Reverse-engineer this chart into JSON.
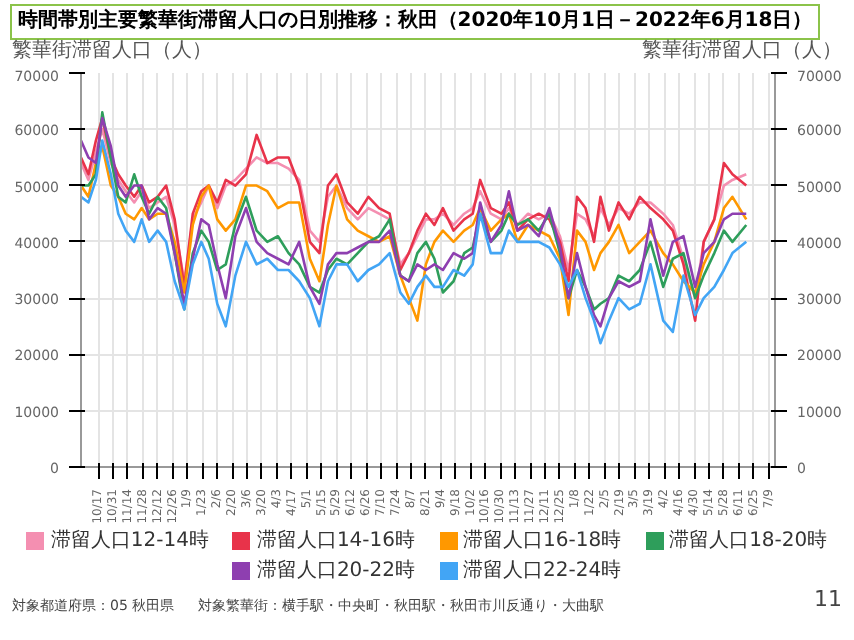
{
  "chart_data": {
    "type": "line",
    "title": "時間帯別主要繁華街滞留人口の日別推移：秋田（2020年10月1日－2022年6月18日）",
    "ylabel": "繁華街滞留人口（人）",
    "y2label": "繁華街滞留人口（人）",
    "annotations": [
      "対象都道府県：05 秋田県",
      "対象繁華街：横手駅・中央町・秋田駅・秋田市川反通り・大曲駅",
      "11"
    ],
    "x": [
      "2020-10-01",
      "2020-10-08",
      "2020-10-15",
      "2020-10-21",
      "2020-10-29",
      "2020-11-05",
      "2020-11-12",
      "2020-11-20",
      "2020-11-27",
      "2020-12-04",
      "2020-12-12",
      "2020-12-20",
      "2020-12-28",
      "2021-01-06",
      "2021-01-14",
      "2021-01-22",
      "2021-01-29",
      "2021-02-06",
      "2021-02-14",
      "2021-02-23",
      "2021-03-05",
      "2021-03-15",
      "2021-03-25",
      "2021-04-04",
      "2021-04-14",
      "2021-04-24",
      "2021-05-04",
      "2021-05-13",
      "2021-05-21",
      "2021-05-29",
      "2021-06-08",
      "2021-06-18",
      "2021-06-28",
      "2021-07-08",
      "2021-07-18",
      "2021-07-28",
      "2021-08-05",
      "2021-08-13",
      "2021-08-21",
      "2021-08-29",
      "2021-09-06",
      "2021-09-16",
      "2021-09-26",
      "2021-10-04",
      "2021-10-11",
      "2021-10-21",
      "2021-10-31",
      "2021-11-07",
      "2021-11-15",
      "2021-11-25",
      "2021-12-05",
      "2021-12-15",
      "2021-12-25",
      "2022-01-02",
      "2022-01-10",
      "2022-01-18",
      "2022-01-26",
      "2022-02-01",
      "2022-02-09",
      "2022-02-18",
      "2022-02-28",
      "2022-03-10",
      "2022-03-20",
      "2022-04-01",
      "2022-04-10",
      "2022-04-20",
      "2022-05-01",
      "2022-05-09",
      "2022-05-19",
      "2022-05-28",
      "2022-06-05",
      "2022-06-18"
    ],
    "series": [
      {
        "name": "滞留人口12-14時",
        "color": "#f48fb1",
        "values": [
          54000,
          51000,
          56000,
          60000,
          54000,
          51000,
          49000,
          47000,
          49000,
          46000,
          47000,
          48000,
          43000,
          33000,
          44000,
          47000,
          50000,
          46000,
          50000,
          51000,
          53000,
          55000,
          54000,
          54000,
          53000,
          51000,
          42000,
          40000,
          48000,
          50000,
          46000,
          44000,
          46000,
          45000,
          44000,
          36000,
          38000,
          41000,
          44000,
          44000,
          45000,
          43000,
          45000,
          46000,
          49000,
          45000,
          44000,
          46000,
          43000,
          45000,
          44000,
          45000,
          41000,
          35000,
          45000,
          44000,
          41000,
          46000,
          43000,
          46000,
          45000,
          47000,
          47000,
          45000,
          43000,
          37000,
          30000,
          40000,
          44000,
          50000,
          51000,
          52000
        ]
      },
      {
        "name": "滞留人口14-16時",
        "color": "#e8334a",
        "values": [
          55000,
          52000,
          58000,
          62000,
          55000,
          52000,
          50000,
          48000,
          50000,
          47000,
          48000,
          50000,
          44000,
          32000,
          45000,
          49000,
          50000,
          47000,
          51000,
          50000,
          52000,
          59000,
          54000,
          55000,
          55000,
          50000,
          40000,
          38000,
          50000,
          52000,
          47000,
          45000,
          48000,
          46000,
          45000,
          35000,
          38000,
          42000,
          45000,
          43000,
          46000,
          42000,
          44000,
          45000,
          51000,
          46000,
          45000,
          47000,
          42000,
          44000,
          45000,
          44000,
          40000,
          33000,
          48000,
          46000,
          40000,
          48000,
          42000,
          47000,
          44000,
          48000,
          46000,
          44000,
          42000,
          36000,
          26000,
          40000,
          44000,
          54000,
          52000,
          50000
        ]
      },
      {
        "name": "滞留人口16-18時",
        "color": "#ff9800",
        "values": [
          50000,
          48000,
          54000,
          57000,
          50000,
          48000,
          45000,
          44000,
          46000,
          44000,
          45000,
          45000,
          40000,
          31000,
          43000,
          48000,
          50000,
          44000,
          42000,
          44000,
          50000,
          50000,
          49000,
          46000,
          47000,
          47000,
          37000,
          33000,
          43000,
          50000,
          44000,
          42000,
          41000,
          40000,
          41000,
          34000,
          30000,
          26000,
          36000,
          40000,
          42000,
          40000,
          42000,
          43000,
          46000,
          42000,
          44000,
          45000,
          40000,
          43000,
          42000,
          41000,
          37000,
          27000,
          42000,
          40000,
          35000,
          38000,
          40000,
          43000,
          38000,
          40000,
          42000,
          38000,
          36000,
          33000,
          31000,
          36000,
          40000,
          46000,
          48000,
          44000
        ]
      },
      {
        "name": "滞留人口18-20時",
        "color": "#2e9e5b",
        "values": [
          50000,
          50000,
          52000,
          63000,
          55000,
          48000,
          47000,
          52000,
          48000,
          45000,
          48000,
          46000,
          38000,
          28000,
          38000,
          42000,
          40000,
          35000,
          36000,
          43000,
          48000,
          42000,
          40000,
          41000,
          38000,
          36000,
          32000,
          31000,
          35000,
          37000,
          36000,
          38000,
          40000,
          41000,
          44000,
          34000,
          33000,
          38000,
          40000,
          37000,
          31000,
          33000,
          38000,
          39000,
          45000,
          40000,
          42000,
          45000,
          43000,
          44000,
          42000,
          45000,
          38000,
          30000,
          35000,
          32000,
          28000,
          29000,
          30000,
          34000,
          33000,
          35000,
          40000,
          32000,
          37000,
          38000,
          30000,
          34000,
          38000,
          42000,
          40000,
          43000
        ]
      },
      {
        "name": "滞留人口20-22時",
        "color": "#8e3fb0",
        "values": [
          58000,
          55000,
          54000,
          62000,
          57000,
          50000,
          48000,
          50000,
          50000,
          44000,
          46000,
          45000,
          38000,
          29000,
          37000,
          44000,
          43000,
          36000,
          30000,
          41000,
          46000,
          40000,
          38000,
          37000,
          36000,
          40000,
          32000,
          29000,
          36000,
          38000,
          38000,
          39000,
          40000,
          40000,
          42000,
          34000,
          33000,
          36000,
          35000,
          36000,
          35000,
          38000,
          37000,
          38000,
          47000,
          40000,
          43000,
          49000,
          42000,
          43000,
          41000,
          46000,
          39000,
          30000,
          38000,
          32000,
          27000,
          25000,
          30000,
          33000,
          32000,
          33000,
          44000,
          34000,
          40000,
          41000,
          32000,
          38000,
          40000,
          44000,
          45000,
          45000
        ]
      },
      {
        "name": "滞留人口22-24時",
        "color": "#42a5f5",
        "values": [
          48000,
          47000,
          51000,
          58000,
          52000,
          45000,
          42000,
          40000,
          44000,
          40000,
          42000,
          40000,
          33000,
          28000,
          36000,
          40000,
          37000,
          29000,
          25000,
          34000,
          40000,
          36000,
          37000,
          35000,
          35000,
          33000,
          30000,
          25000,
          33000,
          36000,
          36000,
          33000,
          35000,
          36000,
          38000,
          31000,
          29000,
          32000,
          34000,
          32000,
          32000,
          35000,
          34000,
          36000,
          45000,
          38000,
          38000,
          42000,
          40000,
          40000,
          40000,
          39000,
          36000,
          32000,
          35000,
          30000,
          26000,
          22000,
          26000,
          30000,
          28000,
          29000,
          36000,
          26000,
          24000,
          34000,
          27000,
          30000,
          32000,
          35000,
          38000,
          40000
        ]
      }
    ],
    "xlim": [
      "2020-10-01",
      "2022-07-15"
    ],
    "xticks": [
      {
        "value": "2020-10-17",
        "label": "10/17"
      },
      {
        "value": "2020-10-31",
        "label": "10/31"
      },
      {
        "value": "2020-11-14",
        "label": "11/14"
      },
      {
        "value": "2020-11-28",
        "label": "11/28"
      },
      {
        "value": "2020-12-12",
        "label": "12/12"
      },
      {
        "value": "2020-12-26",
        "label": "12/26"
      },
      {
        "value": "2021-01-09",
        "label": "1/9"
      },
      {
        "value": "2021-01-23",
        "label": "1/23"
      },
      {
        "value": "2021-02-06",
        "label": "2/6"
      },
      {
        "value": "2021-02-20",
        "label": "2/20"
      },
      {
        "value": "2021-03-06",
        "label": "3/6"
      },
      {
        "value": "2021-03-20",
        "label": "3/20"
      },
      {
        "value": "2021-04-03",
        "label": "4/3"
      },
      {
        "value": "2021-04-17",
        "label": "4/17"
      },
      {
        "value": "2021-05-01",
        "label": "5/1"
      },
      {
        "value": "2021-05-15",
        "label": "5/15"
      },
      {
        "value": "2021-05-29",
        "label": "5/29"
      },
      {
        "value": "2021-06-12",
        "label": "6/12"
      },
      {
        "value": "2021-06-26",
        "label": "6/26"
      },
      {
        "value": "2021-07-10",
        "label": "7/10"
      },
      {
        "value": "2021-07-24",
        "label": "7/24"
      },
      {
        "value": "2021-08-07",
        "label": "8/7"
      },
      {
        "value": "2021-08-21",
        "label": "8/21"
      },
      {
        "value": "2021-09-04",
        "label": "9/4"
      },
      {
        "value": "2021-09-18",
        "label": "9/18"
      },
      {
        "value": "2021-10-02",
        "label": "10/2"
      },
      {
        "value": "2021-10-16",
        "label": "10/16"
      },
      {
        "value": "2021-10-30",
        "label": "10/30"
      },
      {
        "value": "2021-11-13",
        "label": "11/13"
      },
      {
        "value": "2021-11-27",
        "label": "11/27"
      },
      {
        "value": "2021-12-11",
        "label": "12/11"
      },
      {
        "value": "2021-12-25",
        "label": "12/25"
      },
      {
        "value": "2022-01-08",
        "label": "1/8"
      },
      {
        "value": "2022-01-22",
        "label": "1/22"
      },
      {
        "value": "2022-02-05",
        "label": "2/5"
      },
      {
        "value": "2022-02-19",
        "label": "2/19"
      },
      {
        "value": "2022-03-05",
        "label": "3/5"
      },
      {
        "value": "2022-03-19",
        "label": "3/19"
      },
      {
        "value": "2022-04-02",
        "label": "4/2"
      },
      {
        "value": "2022-04-16",
        "label": "4/16"
      },
      {
        "value": "2022-04-30",
        "label": "4/30"
      },
      {
        "value": "2022-05-14",
        "label": "5/14"
      },
      {
        "value": "2022-05-28",
        "label": "5/28"
      },
      {
        "value": "2022-06-11",
        "label": "6/11"
      },
      {
        "value": "2022-06-25",
        "label": "6/25"
      },
      {
        "value": "2022-07-09",
        "label": "7/9"
      }
    ],
    "ylim": [
      0,
      70000
    ],
    "yticks": [
      0,
      10000,
      20000,
      30000,
      40000,
      50000,
      60000,
      70000
    ],
    "y2lim": [
      0,
      70000
    ],
    "y2ticks": [
      0,
      10000,
      20000,
      30000,
      40000,
      50000,
      60000,
      70000
    ],
    "grid": true,
    "legend": "bottom"
  }
}
